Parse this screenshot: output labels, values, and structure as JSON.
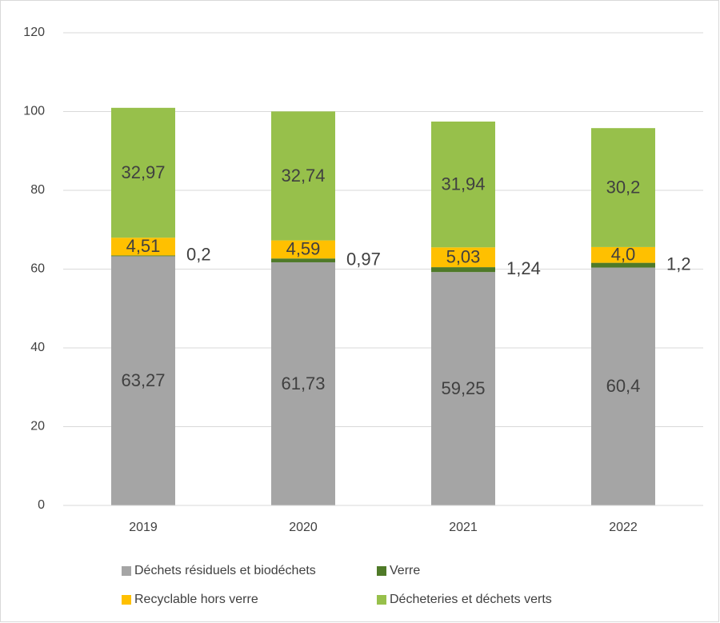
{
  "chart_data": {
    "type": "stacked-bar",
    "categories": [
      "2019",
      "2020",
      "2021",
      "2022"
    ],
    "series": [
      {
        "name": "Déchets résiduels et biodéchets",
        "color": "#a5a5a5",
        "values": [
          63.27,
          61.73,
          59.25,
          60.4
        ],
        "value_labels": [
          "63,27",
          "61,73",
          "59,25",
          "60,4"
        ]
      },
      {
        "name": "Verre",
        "color": "#4f7a28",
        "values": [
          0.2,
          0.97,
          1.24,
          1.2
        ],
        "value_labels": [
          "0,2",
          "0,97",
          "1,24",
          "1,2"
        ]
      },
      {
        "name": "Recyclable hors verre",
        "color": "#ffc000",
        "values": [
          4.51,
          4.59,
          5.03,
          4.0
        ],
        "value_labels": [
          "4,51",
          "4,59",
          "5,03",
          "4,0"
        ]
      },
      {
        "name": "Décheteries et déchets verts",
        "color": "#97c04b",
        "values": [
          32.97,
          32.74,
          31.94,
          30.2
        ],
        "value_labels": [
          "32,97",
          "32,74",
          "31,94",
          "30,2"
        ]
      }
    ],
    "ylim": [
      0,
      120
    ],
    "yticks": [
      0,
      20,
      40,
      60,
      80,
      100,
      120
    ],
    "grid": true
  }
}
